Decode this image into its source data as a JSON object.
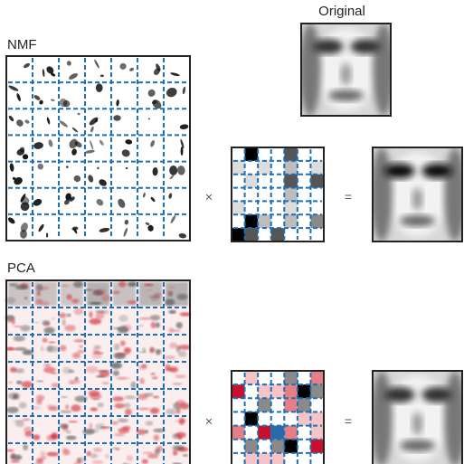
{
  "labels": {
    "original": "Original",
    "nmf": "NMF",
    "pca": "PCA",
    "times_nmf": "×",
    "equals_nmf": "=",
    "times_pca": "×",
    "equals_pca": "="
  }
}
